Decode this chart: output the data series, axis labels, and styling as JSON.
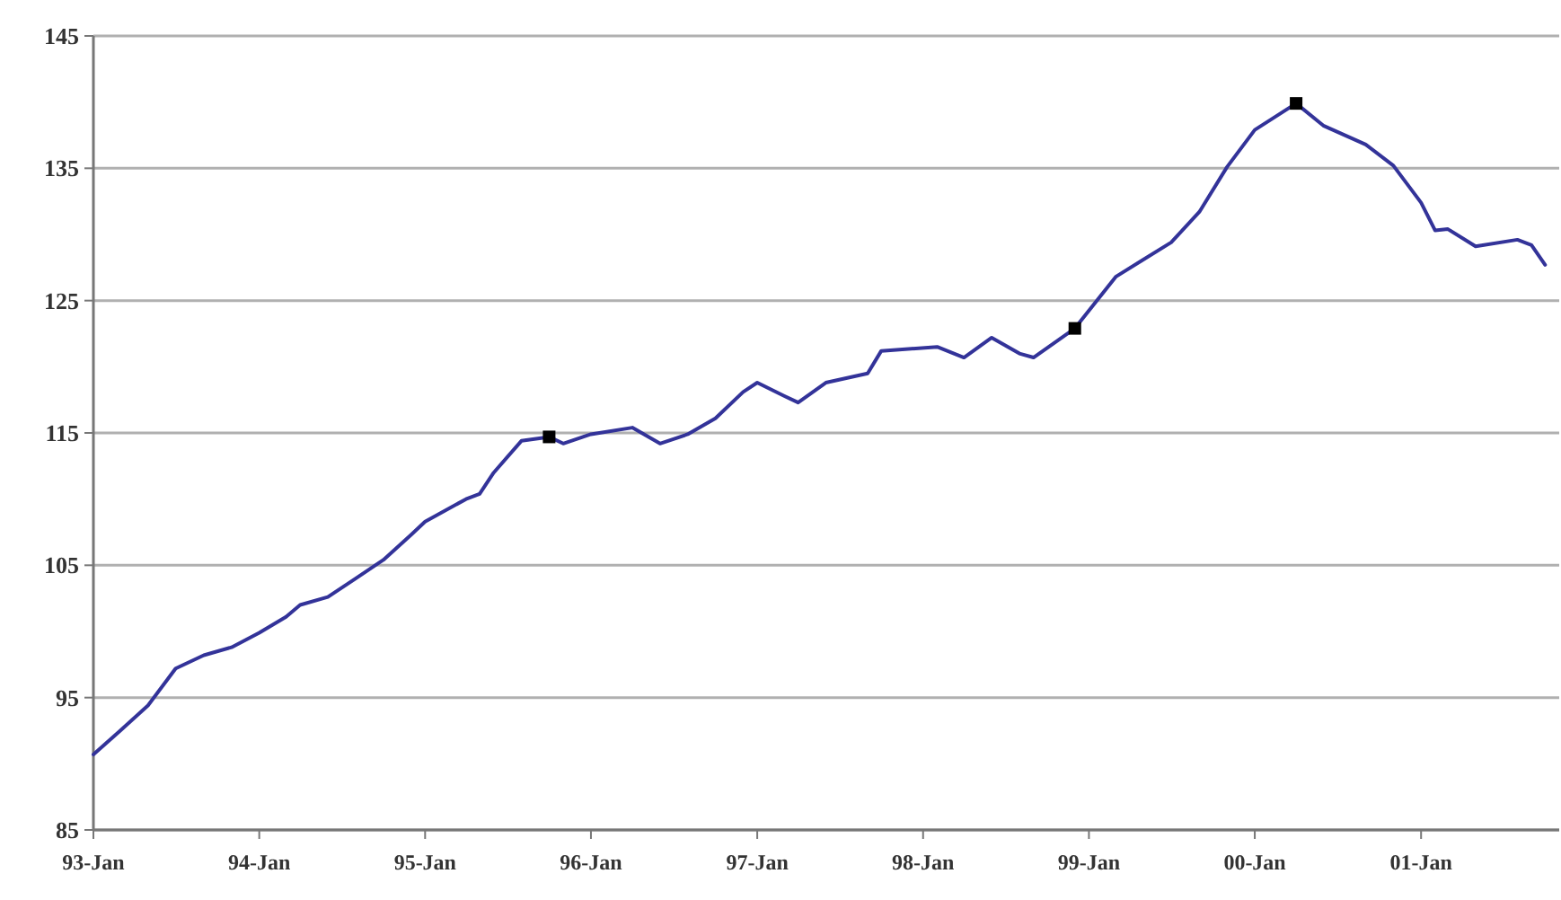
{
  "chart_data": {
    "type": "line",
    "x": [
      "1993-01",
      "1993-03",
      "1993-05",
      "1993-07",
      "1993-09",
      "1993-11",
      "1994-01",
      "1994-03",
      "1994-04",
      "1994-06",
      "1994-08",
      "1994-10",
      "1994-12",
      "1995-01",
      "1995-04",
      "1995-05",
      "1995-06",
      "1995-08",
      "1995-10",
      "1995-11",
      "1996-01",
      "1996-04",
      "1996-06",
      "1996-08",
      "1996-10",
      "1996-12",
      "1997-01",
      "1997-03",
      "1997-04",
      "1997-06",
      "1997-09",
      "1997-10",
      "1998-02",
      "1998-04",
      "1998-06",
      "1998-08",
      "1998-09",
      "1998-12",
      "1999-03",
      "1999-07",
      "1999-09",
      "1999-11",
      "2000-01",
      "2000-04",
      "2000-06",
      "2000-09",
      "2000-11",
      "2001-01",
      "2001-02",
      "2001-03",
      "2001-05",
      "2001-08",
      "2001-09",
      "2001-10"
    ],
    "series": [
      {
        "color": "#333399",
        "marker": "none",
        "values": [
          90.7,
          92.5,
          94.4,
          97.2,
          98.2,
          98.8,
          99.9,
          101.1,
          102,
          102.6,
          104,
          105.4,
          107.3,
          108.3,
          110,
          110.4,
          112,
          114.4,
          114.7,
          114.2,
          114.9,
          115.4,
          114.2,
          114.9,
          116.1,
          118.1,
          118.8,
          117.8,
          117.3,
          118.8,
          119.5,
          121.2,
          121.5,
          120.7,
          122.2,
          121,
          120.7,
          122.9,
          126.8,
          129.4,
          131.7,
          135.1,
          137.9,
          139.9,
          138.2,
          136.8,
          135.2,
          132.4,
          130.3,
          130.4,
          129.1,
          129.6,
          129.2,
          127.7
        ]
      },
      {
        "type": "scatter",
        "color": "#000000",
        "marker": "square",
        "x": [
          "1995-10",
          "1998-12",
          "2000-04"
        ],
        "values": [
          114.7,
          122.9,
          139.9
        ]
      }
    ],
    "xlim": [
      "1993-01",
      "2001-11"
    ],
    "xticks": [
      {
        "value": "1993-01",
        "label": "93-Jan"
      },
      {
        "value": "1994-01",
        "label": "94-Jan"
      },
      {
        "value": "1995-01",
        "label": "95-Jan"
      },
      {
        "value": "1996-01",
        "label": "96-Jan"
      },
      {
        "value": "1997-01",
        "label": "97-Jan"
      },
      {
        "value": "1998-01",
        "label": "98-Jan"
      },
      {
        "value": "1999-01",
        "label": "99-Jan"
      },
      {
        "value": "2000-01",
        "label": "00-Jan"
      },
      {
        "value": "2001-01",
        "label": "01-Jan"
      }
    ],
    "ylim": [
      85,
      145
    ],
    "yticks": [
      85,
      95,
      105,
      115,
      125,
      135,
      145
    ],
    "grid": "y"
  }
}
